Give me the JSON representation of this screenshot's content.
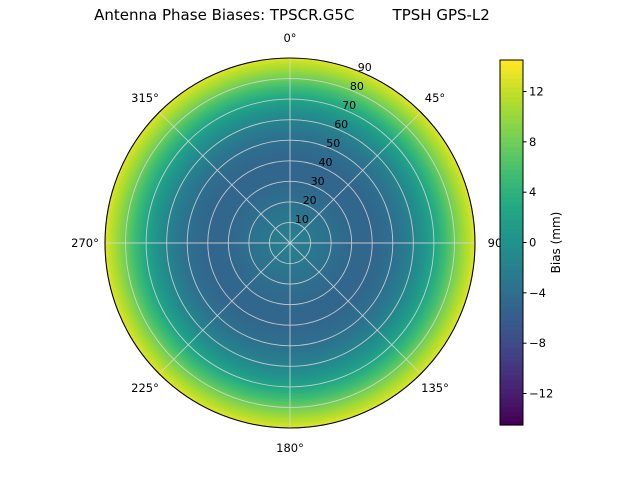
{
  "title": "Antenna Phase Biases: TPSCR.G5C        TPSH GPS-L2",
  "chart_data": {
    "type": "heatmap",
    "projection": "polar",
    "title": "Antenna Phase Biases: TPSCR.G5C        TPSH GPS-L2",
    "rmax": 90,
    "grid": true,
    "angular_ticks": [
      {
        "deg": 0,
        "label": "0°"
      },
      {
        "deg": 45,
        "label": "45°"
      },
      {
        "deg": 90,
        "label": "90"
      },
      {
        "deg": 135,
        "label": "135°"
      },
      {
        "deg": 180,
        "label": "180°"
      },
      {
        "deg": 225,
        "label": "225°"
      },
      {
        "deg": 270,
        "label": "270°"
      },
      {
        "deg": 315,
        "label": "315°"
      }
    ],
    "radial_ticks": [
      10,
      20,
      30,
      40,
      50,
      60,
      70,
      80,
      90
    ],
    "radial_label_azimuth_deg": 22.5,
    "profile": {
      "description": "azimuthally symmetric phase bias vs zenith angle (mm)",
      "zenith_deg": [
        0,
        10,
        20,
        30,
        40,
        50,
        55,
        60,
        65,
        70,
        75,
        80,
        85,
        90
      ],
      "bias_mm": [
        -2.0,
        -2.8,
        -3.9,
        -4.8,
        -5.0,
        -3.9,
        -2.8,
        -1.5,
        0.3,
        2.5,
        5.0,
        8.0,
        10.8,
        13.3
      ]
    },
    "colorbar": {
      "label": "Bias (mm)",
      "tick_values": [
        12,
        8,
        4,
        0,
        -4,
        -8,
        -12
      ],
      "tick_labels": [
        "12",
        "8",
        "4",
        "0",
        "−4",
        "−8",
        "−12"
      ],
      "vmin": -14.5,
      "vmax": 14.5,
      "colormap": "viridis",
      "orientation": "vertical",
      "position": "right"
    }
  },
  "colors": {
    "background": "#ffffff",
    "grid_line": "#d8d8d8",
    "text": "#000000",
    "outline": "#000000",
    "viridis_stops": [
      [
        0.0,
        "#440154"
      ],
      [
        0.1,
        "#482475"
      ],
      [
        0.2,
        "#414487"
      ],
      [
        0.3,
        "#355f8d"
      ],
      [
        0.4,
        "#2a788e"
      ],
      [
        0.5,
        "#21918c"
      ],
      [
        0.6,
        "#22a884"
      ],
      [
        0.7,
        "#44bf70"
      ],
      [
        0.8,
        "#7ad151"
      ],
      [
        0.9,
        "#b5de2b"
      ],
      [
        1.0,
        "#fde725"
      ]
    ]
  }
}
